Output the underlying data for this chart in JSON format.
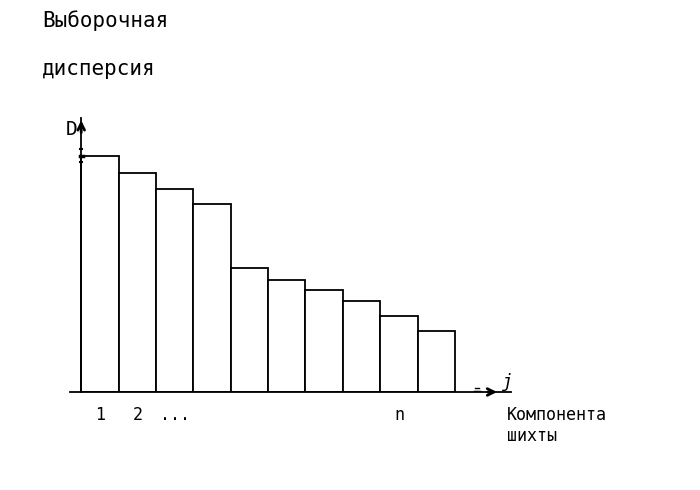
{
  "title_line1": "Выборочная",
  "title_line2": "дисперсия",
  "ylabel_symbol": "D",
  "xlabel_symbol": "j",
  "xlabel_label": "Компонента\nшихты",
  "bar_values": [
    0.93,
    0.86,
    0.8,
    0.74,
    0.49,
    0.44,
    0.4,
    0.36,
    0.3,
    0.24
  ],
  "bar_color": "#ffffff",
  "bar_edge_color": "#000000",
  "background_color": "#ffffff",
  "bar_width": 1.0,
  "ylim": [
    0,
    1.08
  ],
  "font_size_title": 15,
  "font_size_labels": 13,
  "font_size_ticks": 12,
  "n_bar_index": 8
}
